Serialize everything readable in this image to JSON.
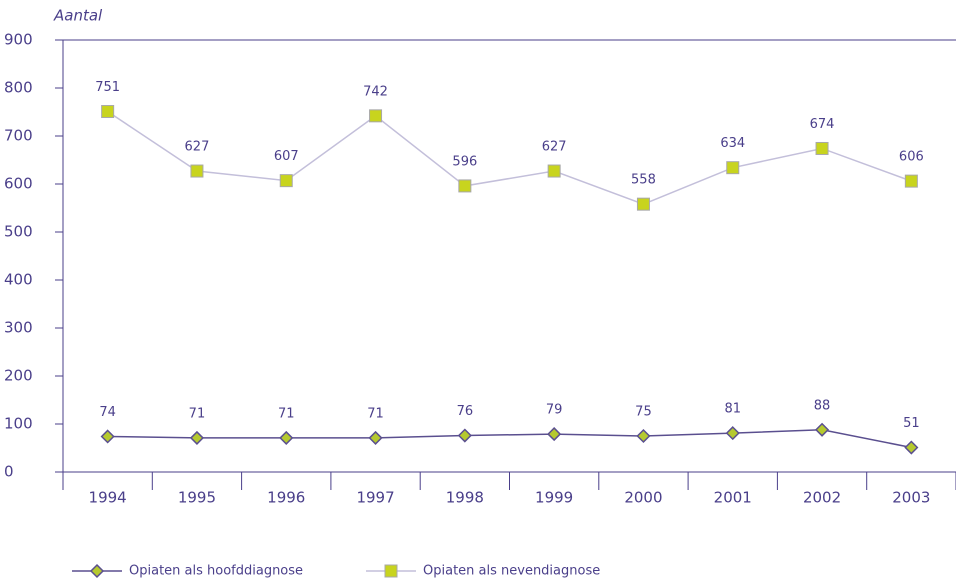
{
  "chart_data": {
    "type": "line",
    "y_label": "Aantal",
    "categories": [
      "1994",
      "1995",
      "1996",
      "1997",
      "1998",
      "1999",
      "2000",
      "2001",
      "2002",
      "2003"
    ],
    "series": [
      {
        "name": "Opiaten als hoofddiagnose",
        "color": "#5a4f8f",
        "marker": "diamond",
        "marker_color": "#b5c92f",
        "values": [
          74,
          71,
          71,
          71,
          76,
          79,
          75,
          81,
          88,
          51
        ]
      },
      {
        "name": "Opiaten als nevendiagnose",
        "color": "#c3bfda",
        "marker": "square",
        "marker_color": "#c8d41e",
        "values": [
          751,
          627,
          607,
          742,
          596,
          627,
          558,
          634,
          674,
          606
        ]
      }
    ],
    "ylim": [
      0,
      900
    ],
    "yticks": [
      0,
      100,
      200,
      300,
      400,
      500,
      600,
      700,
      800,
      900
    ],
    "grid": false,
    "legend": "bottom"
  }
}
